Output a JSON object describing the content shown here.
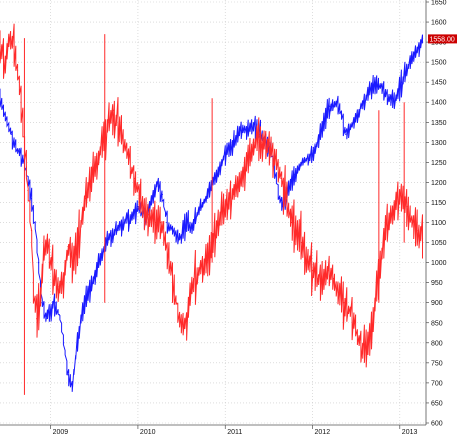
{
  "chart_data": {
    "type": "line",
    "title": "",
    "xlabel": "",
    "ylabel": "",
    "ylim": [
      595,
      1655
    ],
    "xlim": [
      2008.42,
      2013.3
    ],
    "y_ticks": [
      600,
      650,
      700,
      750,
      800,
      850,
      900,
      950,
      1000,
      1050,
      1100,
      1150,
      1200,
      1250,
      1300,
      1350,
      1400,
      1450,
      1500,
      1550,
      1600,
      1650
    ],
    "x_ticks": [
      {
        "x": 2009.0,
        "label": "2009"
      },
      {
        "x": 2010.0,
        "label": "2010"
      },
      {
        "x": 2011.0,
        "label": "2011"
      },
      {
        "x": 2012.0,
        "label": "2012"
      },
      {
        "x": 2013.0,
        "label": "2013"
      }
    ],
    "last_value_label": "1558.00",
    "grid": true,
    "colors": {
      "series_blue": "#1a1aff",
      "series_red": "#ff2a2a",
      "grid": "#c8c8c8",
      "last_value_bg": "#cc0000"
    },
    "series": [
      {
        "color": "#1a1aff",
        "x": [
          2008.42,
          2008.48,
          2008.55,
          2008.62,
          2008.68,
          2008.72,
          2008.78,
          2008.82,
          2008.86,
          2008.9,
          2008.95,
          2009.0,
          2009.05,
          2009.1,
          2009.15,
          2009.2,
          2009.25,
          2009.3,
          2009.35,
          2009.42,
          2009.5,
          2009.58,
          2009.66,
          2009.75,
          2009.83,
          2009.92,
          2010.0,
          2010.08,
          2010.17,
          2010.22,
          2010.28,
          2010.33,
          2010.4,
          2010.45,
          2010.5,
          2010.55,
          2010.62,
          2010.7,
          2010.78,
          2010.86,
          2010.94,
          2011.02,
          2011.1,
          2011.18,
          2011.26,
          2011.33,
          2011.4,
          2011.46,
          2011.52,
          2011.58,
          2011.62,
          2011.66,
          2011.72,
          2011.8,
          2011.88,
          2011.96,
          2012.04,
          2012.12,
          2012.2,
          2012.27,
          2012.33,
          2012.38,
          2012.44,
          2012.5,
          2012.58,
          2012.66,
          2012.72,
          2012.78,
          2012.84,
          2012.9,
          2012.96,
          2013.02,
          2013.08,
          2013.14,
          2013.2,
          2013.26
        ],
        "y": [
          1400,
          1370,
          1320,
          1280,
          1260,
          1230,
          1160,
          1100,
          1000,
          900,
          860,
          880,
          900,
          870,
          800,
          720,
          690,
          790,
          860,
          920,
          960,
          1020,
          1060,
          1080,
          1100,
          1110,
          1140,
          1110,
          1160,
          1200,
          1170,
          1100,
          1080,
          1070,
          1060,
          1100,
          1090,
          1130,
          1160,
          1200,
          1240,
          1280,
          1300,
          1330,
          1330,
          1340,
          1320,
          1300,
          1280,
          1220,
          1160,
          1140,
          1180,
          1220,
          1250,
          1260,
          1290,
          1340,
          1390,
          1400,
          1370,
          1320,
          1340,
          1360,
          1400,
          1430,
          1450,
          1440,
          1420,
          1400,
          1410,
          1450,
          1480,
          1510,
          1530,
          1560
        ]
      },
      {
        "color": "#ff2a2a",
        "x": [
          2008.42,
          2008.48,
          2008.53,
          2008.58,
          2008.62,
          2008.66,
          2008.7,
          2008.74,
          2008.78,
          2008.8,
          2008.84,
          2008.88,
          2008.92,
          2008.96,
          2009.0,
          2009.05,
          2009.1,
          2009.15,
          2009.2,
          2009.25,
          2009.3,
          2009.35,
          2009.4,
          2009.45,
          2009.5,
          2009.55,
          2009.6,
          2009.66,
          2009.72,
          2009.8,
          2009.88,
          2009.96,
          2010.04,
          2010.12,
          2010.2,
          2010.26,
          2010.32,
          2010.38,
          2010.44,
          2010.5,
          2010.56,
          2010.62,
          2010.68,
          2010.74,
          2010.8,
          2010.86,
          2010.94,
          2011.02,
          2011.1,
          2011.18,
          2011.26,
          2011.34,
          2011.42,
          2011.5,
          2011.58,
          2011.64,
          2011.7,
          2011.76,
          2011.82,
          2011.88,
          2011.94,
          2012.0,
          2012.06,
          2012.12,
          2012.18,
          2012.24,
          2012.3,
          2012.36,
          2012.42,
          2012.48,
          2012.54,
          2012.6,
          2012.66,
          2012.72,
          2012.78,
          2012.84,
          2012.9,
          2012.96,
          2013.02,
          2013.08,
          2013.14,
          2013.2,
          2013.26
        ],
        "y": [
          1540,
          1500,
          1560,
          1540,
          1480,
          1400,
          1300,
          1180,
          1080,
          950,
          860,
          900,
          1020,
          1060,
          1000,
          960,
          940,
          960,
          1040,
          1000,
          1020,
          1100,
          1160,
          1200,
          1230,
          1260,
          1300,
          1350,
          1380,
          1330,
          1270,
          1210,
          1150,
          1120,
          1100,
          1100,
          1040,
          980,
          900,
          840,
          860,
          940,
          970,
          990,
          1000,
          1050,
          1110,
          1150,
          1170,
          1200,
          1260,
          1300,
          1300,
          1290,
          1260,
          1210,
          1160,
          1100,
          1080,
          1050,
          1000,
          980,
          960,
          950,
          980,
          960,
          920,
          900,
          880,
          850,
          800,
          780,
          810,
          900,
          1000,
          1080,
          1120,
          1150,
          1160,
          1140,
          1100,
          1080,
          1060
        ]
      }
    ]
  }
}
